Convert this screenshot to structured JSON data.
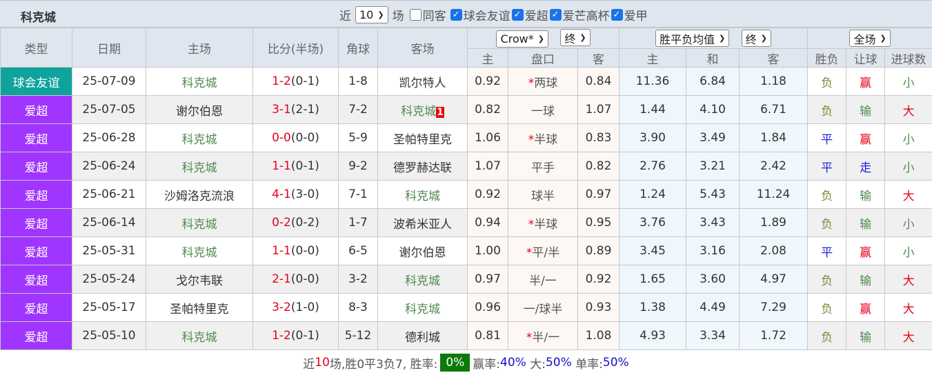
{
  "header": {
    "team": "科克城",
    "recent_prefix": "近",
    "recent_count": "10",
    "recent_suffix": "场",
    "same_label": "同客",
    "leagues": [
      "球会友谊",
      "爱超",
      "爱芒高杯",
      "爱甲"
    ]
  },
  "columns": {
    "type": "类型",
    "date": "日期",
    "home": "主场",
    "score": "比分(半场)",
    "corner": "角球",
    "away": "客场",
    "ah_company": "Crow*",
    "ah_time": "终",
    "eu_company": "胜平负均值",
    "eu_time": "终",
    "result_scope": "全场",
    "ah_home": "主",
    "ah_line": "盘口",
    "ah_away": "客",
    "eu_home": "主",
    "eu_draw": "和",
    "eu_away": "客",
    "wl": "胜负",
    "handicap": "让球",
    "goals": "进球数"
  },
  "rows": [
    {
      "type": "球会友谊",
      "date": "25-07-09",
      "home": "科克城",
      "ft": "1-2",
      "ht": "(0-1)",
      "corner": "1-8",
      "away": "凯尔特人",
      "ah_h": "0.92",
      "ah_star": "*",
      "ah_line": "两球",
      "ah_a": "0.84",
      "eu_h": "11.36",
      "eu_d": "6.84",
      "eu_a": "1.18",
      "wl": "负",
      "hc": "赢",
      "goals": "小"
    },
    {
      "type": "爱超",
      "date": "25-07-05",
      "home": "谢尔伯恩",
      "ft": "3-1",
      "ht": "(2-1)",
      "corner": "7-2",
      "away": "科克城",
      "away_rank": "1",
      "ah_h": "0.82",
      "ah_star": "",
      "ah_line": "一球",
      "ah_a": "1.07",
      "eu_h": "1.44",
      "eu_d": "4.10",
      "eu_a": "6.71",
      "wl": "负",
      "hc": "输",
      "goals": "大"
    },
    {
      "type": "爱超",
      "date": "25-06-28",
      "home": "科克城",
      "ft": "0-0",
      "ht": "(0-0)",
      "corner": "5-9",
      "away": "圣帕特里克",
      "ah_h": "1.06",
      "ah_star": "*",
      "ah_line": "半球",
      "ah_a": "0.83",
      "eu_h": "3.90",
      "eu_d": "3.49",
      "eu_a": "1.84",
      "wl": "平",
      "hc": "赢",
      "goals": "小"
    },
    {
      "type": "爱超",
      "date": "25-06-24",
      "home": "科克城",
      "ft": "1-1",
      "ht": "(0-1)",
      "corner": "9-2",
      "away": "德罗赫达联",
      "ah_h": "1.07",
      "ah_star": "",
      "ah_line": "平手",
      "ah_a": "0.82",
      "eu_h": "2.76",
      "eu_d": "3.21",
      "eu_a": "2.42",
      "wl": "平",
      "hc": "走",
      "goals": "小"
    },
    {
      "type": "爱超",
      "date": "25-06-21",
      "home": "沙姆洛克流浪",
      "ft": "4-1",
      "ht": "(3-0)",
      "corner": "7-1",
      "away": "科克城",
      "ah_h": "0.92",
      "ah_star": "",
      "ah_line": "球半",
      "ah_a": "0.97",
      "eu_h": "1.24",
      "eu_d": "5.43",
      "eu_a": "11.24",
      "wl": "负",
      "hc": "输",
      "goals": "大"
    },
    {
      "type": "爱超",
      "date": "25-06-14",
      "home": "科克城",
      "ft": "0-2",
      "ht": "(0-2)",
      "corner": "1-7",
      "away": "波希米亚人",
      "ah_h": "0.94",
      "ah_star": "*",
      "ah_line": "半球",
      "ah_a": "0.95",
      "eu_h": "3.76",
      "eu_d": "3.43",
      "eu_a": "1.89",
      "wl": "负",
      "hc": "输",
      "goals": "小"
    },
    {
      "type": "爱超",
      "date": "25-05-31",
      "home": "科克城",
      "ft": "1-1",
      "ht": "(0-0)",
      "corner": "6-5",
      "away": "谢尔伯恩",
      "ah_h": "1.00",
      "ah_star": "*",
      "ah_line": "平/半",
      "ah_a": "0.89",
      "eu_h": "3.45",
      "eu_d": "3.16",
      "eu_a": "2.08",
      "wl": "平",
      "hc": "赢",
      "goals": "小"
    },
    {
      "type": "爱超",
      "date": "25-05-24",
      "home": "戈尔韦联",
      "ft": "2-1",
      "ht": "(0-0)",
      "corner": "3-2",
      "away": "科克城",
      "ah_h": "0.97",
      "ah_star": "",
      "ah_line": "半/一",
      "ah_a": "0.92",
      "eu_h": "1.65",
      "eu_d": "3.60",
      "eu_a": "4.97",
      "wl": "负",
      "hc": "输",
      "goals": "大"
    },
    {
      "type": "爱超",
      "date": "25-05-17",
      "home": "圣帕特里克",
      "ft": "3-2",
      "ht": "(1-0)",
      "corner": "8-3",
      "away": "科克城",
      "ah_h": "0.96",
      "ah_star": "",
      "ah_line": "一/球半",
      "ah_a": "0.93",
      "eu_h": "1.38",
      "eu_d": "4.49",
      "eu_a": "7.29",
      "wl": "负",
      "hc": "赢",
      "goals": "大"
    },
    {
      "type": "爱超",
      "date": "25-05-10",
      "home": "科克城",
      "ft": "1-2",
      "ht": "(0-1)",
      "corner": "5-12",
      "away": "德利城",
      "ah_h": "0.81",
      "ah_star": "*",
      "ah_line": "半/一",
      "ah_a": "1.08",
      "eu_h": "4.93",
      "eu_d": "3.34",
      "eu_a": "1.72",
      "wl": "负",
      "hc": "输",
      "goals": "大"
    }
  ],
  "footer": {
    "p1": "近",
    "count": "10",
    "p2": "场,胜0平3负7, 胜率:",
    "win_rate": "0%",
    "hc_label": "赢率:",
    "hc_rate": "40%",
    "big_label": "大:",
    "big_rate": "50%",
    "odd_label": "单率:",
    "odd_rate": "50%"
  }
}
